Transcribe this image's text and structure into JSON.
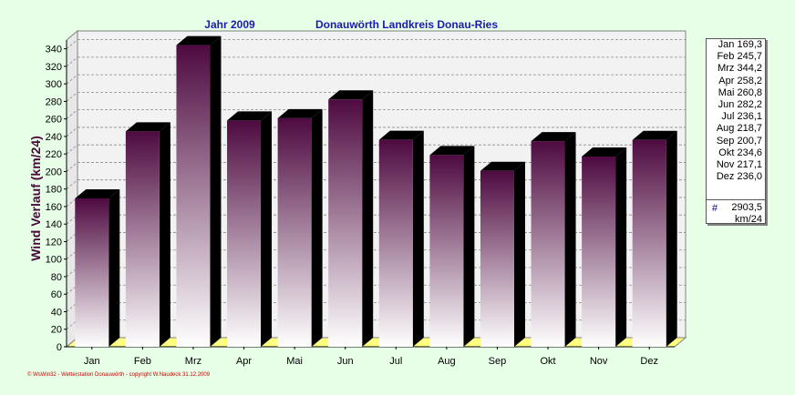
{
  "header": {
    "year_label": "Jahr  2009",
    "location": "Donauwörth Landkreis Donau-Ries"
  },
  "chart_data": {
    "type": "bar",
    "categories": [
      "Jan",
      "Feb",
      "Mrz",
      "Apr",
      "Mai",
      "Jun",
      "Jul",
      "Aug",
      "Sep",
      "Okt",
      "Nov",
      "Dez"
    ],
    "values": [
      169.3,
      245.7,
      344.2,
      258.2,
      260.8,
      282.2,
      236.1,
      218.7,
      200.7,
      234.6,
      217.1,
      236.0
    ],
    "ylabel": "Wind Verlauf  (km/24)",
    "ylim": [
      0,
      350
    ],
    "yticks": [
      0,
      20,
      40,
      60,
      80,
      100,
      120,
      140,
      160,
      180,
      200,
      220,
      240,
      260,
      280,
      300,
      320,
      340
    ],
    "grid": true
  },
  "legend": {
    "rows": [
      {
        "label": "Jan 169,3"
      },
      {
        "label": "Feb 245,7"
      },
      {
        "label": "Mrz 344,2"
      },
      {
        "label": "Apr 258,2"
      },
      {
        "label": "Mai 260,8"
      },
      {
        "label": "Jun 282,2"
      },
      {
        "label": "Jul 236,1"
      },
      {
        "label": "Aug 218,7"
      },
      {
        "label": "Sep 200,7"
      },
      {
        "label": "Okt 234,6"
      },
      {
        "label": "Nov 217,1"
      },
      {
        "label": "Dez 236,0"
      }
    ],
    "total_hash": "#",
    "total_value": "2903,5",
    "total_unit": "km/24"
  },
  "footer": {
    "copyright": "© WsWin32  -  Wetterstation Donauwörth  -  copyright W.Naudeck  31.12.2009"
  },
  "colors": {
    "background": "#e6ffe6",
    "plot_back": "#f0f0f0",
    "floor": "#ffff80",
    "bar_top": "#4e0a40",
    "bar_bottom": "#ffffff",
    "bar_side": "#000000",
    "title": "#1a1ab0",
    "axis_label": "#4a0a3c",
    "footer": "#cc0000"
  }
}
